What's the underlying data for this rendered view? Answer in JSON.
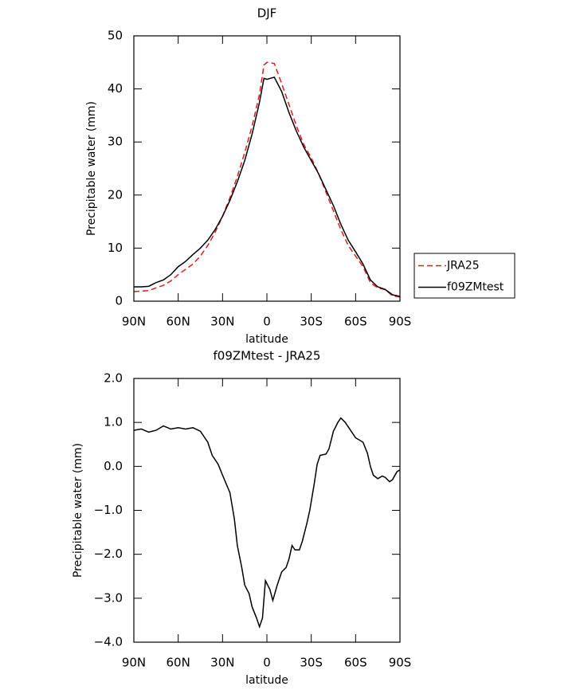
{
  "chart_data": [
    {
      "type": "line",
      "title": "DJF",
      "x_label": "latitude",
      "y_label": "Precipitable water (mm)",
      "x": [
        90,
        85,
        80,
        75,
        70,
        65,
        60,
        55,
        50,
        45,
        40,
        35,
        30,
        25,
        20,
        15,
        10,
        5,
        2,
        0,
        -5,
        -10,
        -15,
        -20,
        -25,
        -30,
        -35,
        -40,
        -45,
        -50,
        -55,
        -60,
        -65,
        -70,
        -75,
        -80,
        -85,
        -90
      ],
      "series": [
        {
          "name": "JRA25",
          "color": "#e41a1c",
          "linestyle": "dashed",
          "values": [
            1.8,
            1.9,
            2.0,
            2.5,
            3.0,
            3.8,
            5.0,
            6.0,
            7.0,
            8.5,
            10.5,
            13,
            16,
            19.5,
            23.5,
            28,
            33,
            39,
            44.5,
            45,
            44.8,
            41,
            37,
            33,
            29.5,
            27,
            24,
            20.5,
            17,
            13.5,
            10.5,
            8.5,
            6.5,
            3.5,
            2.5,
            2.2,
            1.0,
            0.8
          ]
        },
        {
          "name": "f09ZMtest",
          "color": "#000000",
          "linestyle": "solid",
          "values": [
            2.7,
            2.7,
            2.8,
            3.5,
            4,
            5,
            6.5,
            7.5,
            8.8,
            10,
            11.5,
            13.5,
            16,
            19,
            22.5,
            26.5,
            31.5,
            37.5,
            42,
            41.8,
            42.2,
            39.5,
            35.5,
            32,
            29,
            26.5,
            24,
            21,
            18,
            14.5,
            11.5,
            9.3,
            7,
            4,
            2.7,
            2.2,
            1.2,
            0.9
          ]
        }
      ],
      "xlim": [
        90,
        -90
      ],
      "xticks": [
        {
          "value": 90,
          "label": "90N"
        },
        {
          "value": 60,
          "label": "60N"
        },
        {
          "value": 30,
          "label": "30N"
        },
        0,
        {
          "value": -30,
          "label": "30S"
        },
        {
          "value": -60,
          "label": "60S"
        },
        {
          "value": -90,
          "label": "90S"
        }
      ],
      "ylim": [
        0,
        50
      ],
      "yticks": [
        0,
        10,
        20,
        30,
        40,
        50
      ],
      "legend": "right"
    },
    {
      "type": "line",
      "title": "f09ZMtest - JRA25",
      "x_label": "latitude",
      "y_label": "Precipitable water (mm)",
      "x": [
        90,
        85,
        80,
        75,
        70,
        65,
        60,
        55,
        50,
        45,
        40,
        37,
        33,
        30,
        25,
        22,
        20,
        17,
        15,
        12,
        10,
        7,
        5,
        3,
        1,
        -2,
        -4,
        -7,
        -10,
        -13,
        -15,
        -17,
        -19,
        -22,
        -24,
        -27,
        -29,
        -32,
        -34,
        -36,
        -40,
        -42,
        -45,
        -48,
        -50,
        -53,
        -56,
        -60,
        -65,
        -68,
        -70,
        -72,
        -75,
        -78,
        -80,
        -83,
        -85,
        -88,
        -90
      ],
      "values": [
        0.82,
        0.85,
        0.78,
        0.82,
        0.92,
        0.85,
        0.88,
        0.85,
        0.88,
        0.8,
        0.55,
        0.25,
        0.05,
        -0.2,
        -0.6,
        -1.2,
        -1.8,
        -2.3,
        -2.7,
        -2.9,
        -3.2,
        -3.45,
        -3.65,
        -3.45,
        -2.6,
        -2.8,
        -3.05,
        -2.7,
        -2.4,
        -2.3,
        -2.1,
        -1.8,
        -1.9,
        -1.9,
        -1.7,
        -1.3,
        -1.0,
        -0.4,
        0.05,
        0.25,
        0.28,
        0.4,
        0.8,
        1.0,
        1.1,
        1.0,
        0.85,
        0.65,
        0.55,
        0.3,
        0.0,
        -0.2,
        -0.28,
        -0.22,
        -0.25,
        -0.35,
        -0.3,
        -0.12,
        -0.08
      ],
      "color": "#000000",
      "xlim": [
        90,
        -90
      ],
      "xticks": [
        {
          "value": 90,
          "label": "90N"
        },
        {
          "value": 60,
          "label": "60N"
        },
        {
          "value": 30,
          "label": "30N"
        },
        0,
        {
          "value": -30,
          "label": "30S"
        },
        {
          "value": -60,
          "label": "60S"
        },
        {
          "value": -90,
          "label": "90S"
        }
      ],
      "ylim": [
        -4,
        2
      ],
      "yticks": [
        {
          "value": -4,
          "label": "−4.0"
        },
        {
          "value": -3,
          "label": "−3.0"
        },
        {
          "value": -2,
          "label": "−2.0"
        },
        {
          "value": -1,
          "label": "−1.0"
        },
        {
          "value": 0,
          "label": "0.0"
        },
        {
          "value": 1,
          "label": "1.0"
        },
        {
          "value": 2,
          "label": "2.0"
        }
      ]
    }
  ]
}
